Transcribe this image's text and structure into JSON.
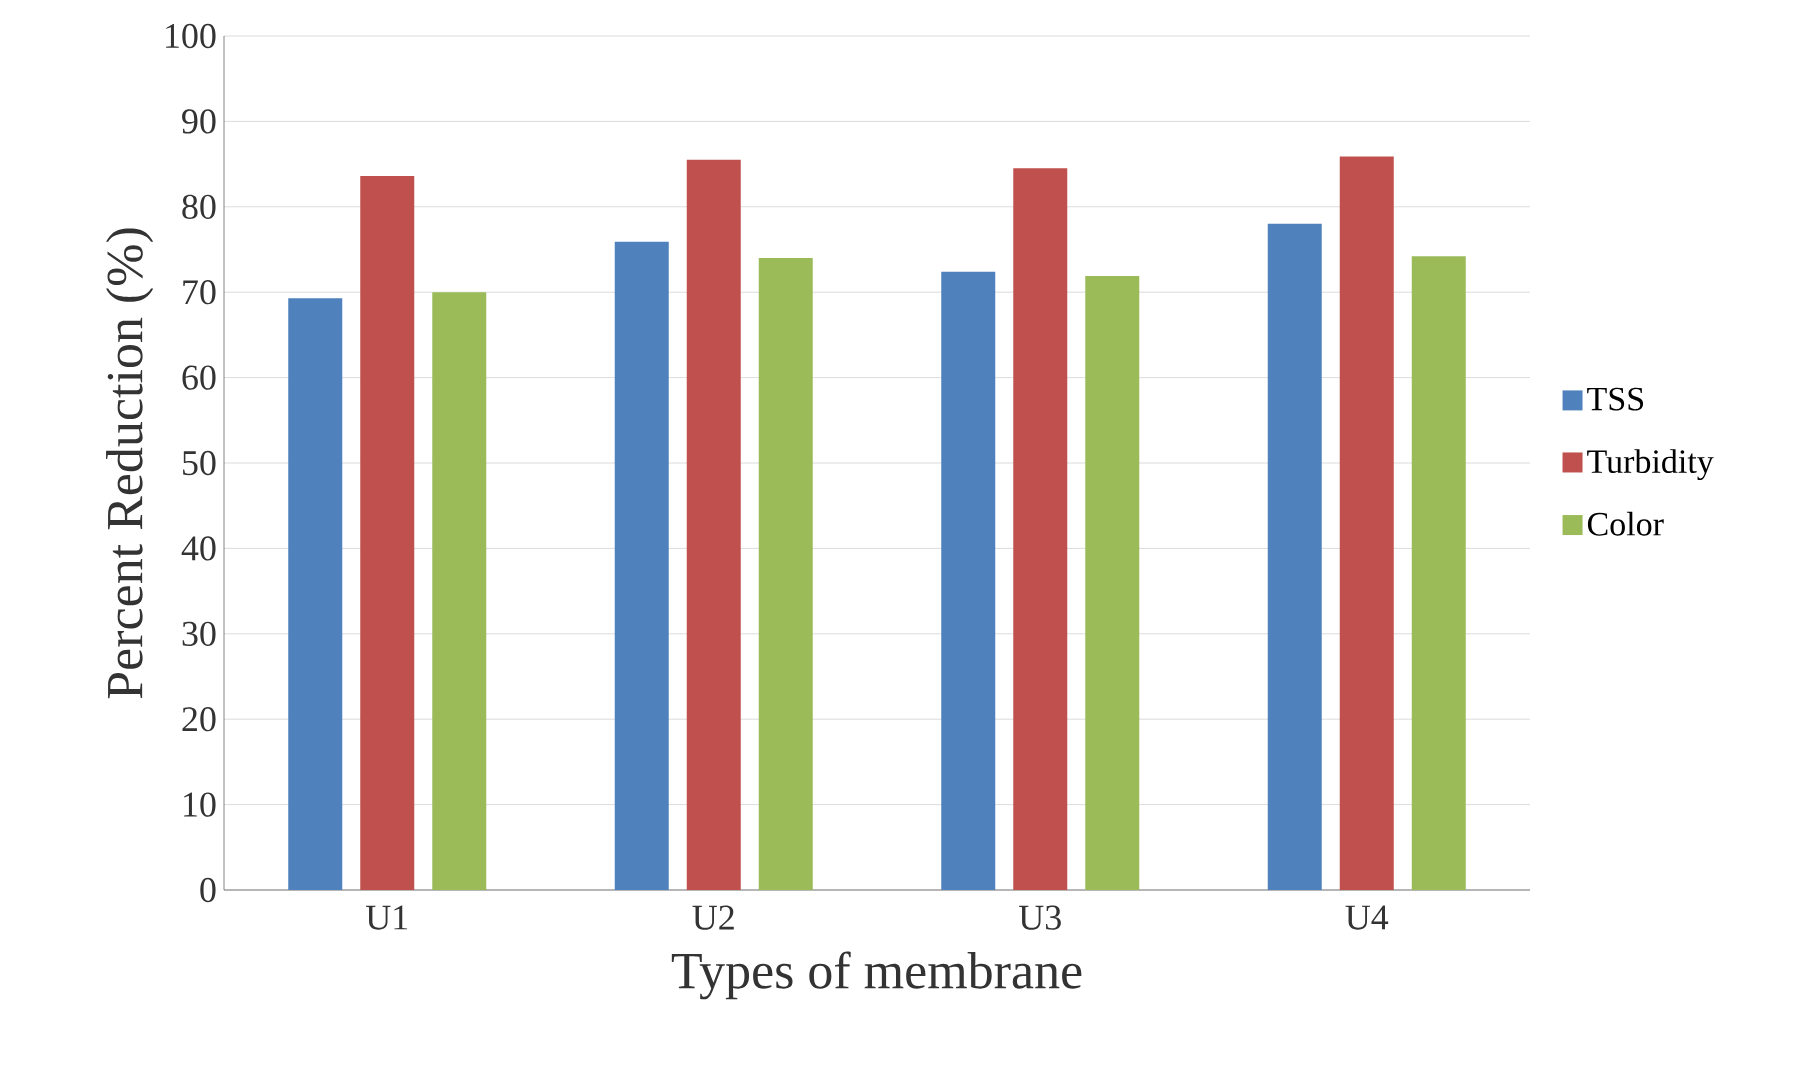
{
  "chart_data": {
    "type": "bar",
    "xlabel": "Types of membrane",
    "ylabel": "Percent Reduction (%)",
    "categories": [
      "U1",
      "U2",
      "U3",
      "U4"
    ],
    "series": [
      {
        "name": "TSS",
        "color": "#4f81bd",
        "values": [
          69.3,
          75.9,
          72.4,
          78.0
        ]
      },
      {
        "name": "Turbidity",
        "color": "#c0504d",
        "values": [
          83.6,
          85.5,
          84.5,
          85.9
        ]
      },
      {
        "name": "Color",
        "color": "#9bbb59",
        "values": [
          70.0,
          74.0,
          71.9,
          74.2
        ]
      }
    ],
    "ylim": [
      0,
      100
    ],
    "yticks": [
      0,
      10,
      20,
      30,
      40,
      50,
      60,
      70,
      80,
      90,
      100
    ],
    "grid": "y",
    "legend": "right"
  }
}
